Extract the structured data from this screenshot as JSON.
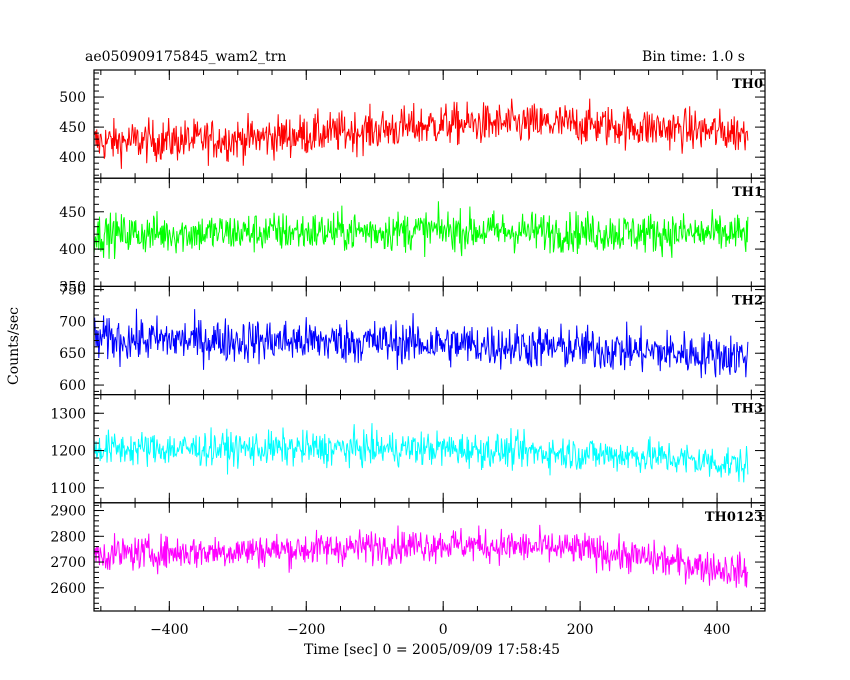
{
  "header": {
    "title": "ae050909175845_wam2_trn",
    "bin_time": "Bin time: 1.0 s"
  },
  "ylabel": "Counts/sec",
  "xlabel": "Time [sec] 0 = 2005/09/09 17:58:45",
  "chart_data": {
    "type": "line",
    "x_range": [
      -510,
      445
    ],
    "xlim": [
      -510,
      470
    ],
    "x_ticks": [
      -400,
      -200,
      0,
      200,
      400
    ],
    "x_tick_labels": [
      "−400",
      "−200",
      "0",
      "200",
      "400"
    ],
    "bin_time_s": 1.0,
    "grid": false,
    "series": [
      {
        "name": "TH0",
        "color": "#ff0000",
        "ylim": [
          365,
          545
        ],
        "y_ticks": [
          400,
          450,
          500
        ],
        "trend": [
          [
            -510,
            425
          ],
          [
            -300,
            430
          ],
          [
            -100,
            445
          ],
          [
            0,
            455
          ],
          [
            200,
            455
          ],
          [
            445,
            440
          ]
        ],
        "noise_amplitude": 45
      },
      {
        "name": "TH1",
        "color": "#00ff00",
        "ylim": [
          350,
          495
        ],
        "y_ticks": [
          350,
          400,
          450
        ],
        "trend": [
          [
            -510,
            420
          ],
          [
            0,
            425
          ],
          [
            445,
            420
          ]
        ],
        "noise_amplitude": 35
      },
      {
        "name": "TH2",
        "color": "#0000ff",
        "ylim": [
          585,
          755
        ],
        "y_ticks": [
          600,
          650,
          700,
          750
        ],
        "trend": [
          [
            -510,
            672
          ],
          [
            -100,
            668
          ],
          [
            200,
            658
          ],
          [
            445,
            645
          ]
        ],
        "noise_amplitude": 45
      },
      {
        "name": "TH3",
        "color": "#00ffff",
        "ylim": [
          1060,
          1350
        ],
        "y_ticks": [
          1100,
          1200,
          1300
        ],
        "trend": [
          [
            -510,
            1205
          ],
          [
            0,
            1205
          ],
          [
            300,
            1185
          ],
          [
            445,
            1160
          ]
        ],
        "noise_amplitude": 60
      },
      {
        "name": "TH0123",
        "color": "#ff00ff",
        "ylim": [
          2510,
          2930
        ],
        "y_ticks": [
          2600,
          2700,
          2800,
          2900
        ],
        "trend": [
          [
            -510,
            2730
          ],
          [
            -200,
            2750
          ],
          [
            0,
            2770
          ],
          [
            200,
            2750
          ],
          [
            445,
            2660
          ]
        ],
        "noise_amplitude": 85
      }
    ]
  }
}
